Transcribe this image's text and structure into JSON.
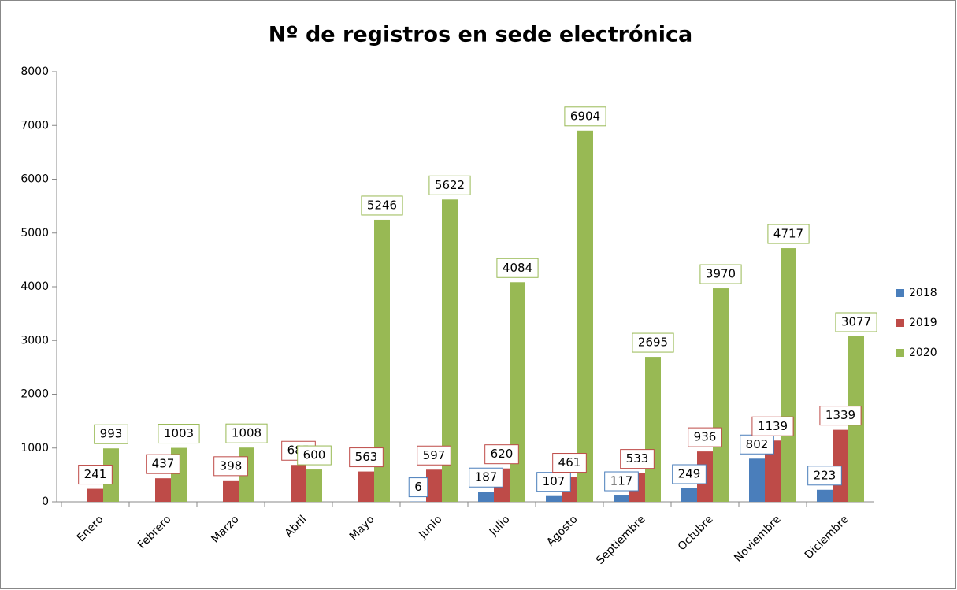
{
  "chart_data": {
    "type": "bar",
    "title": "Nº de registros en sede electrónica",
    "categories": [
      "Enero",
      "Febrero",
      "Marzo",
      "Abril",
      "Mayo",
      "Junio",
      "Julio",
      "Agosto",
      "Septiembre",
      "Octubre",
      "Noviembre",
      "Diciembre"
    ],
    "series": [
      {
        "name": "2018",
        "color": "#4a7ebb",
        "values": [
          null,
          null,
          null,
          null,
          null,
          6,
          187,
          107,
          117,
          249,
          802,
          223
        ]
      },
      {
        "name": "2019",
        "color": "#be4b48",
        "values": [
          241,
          437,
          398,
          685,
          563,
          597,
          620,
          461,
          533,
          936,
          1139,
          1339
        ]
      },
      {
        "name": "2020",
        "color": "#98b954",
        "values": [
          993,
          1003,
          1008,
          600,
          5246,
          5622,
          4084,
          6904,
          2695,
          3970,
          4717,
          3077
        ]
      }
    ],
    "ylim": [
      0,
      8000
    ],
    "yticks": [
      0,
      1000,
      2000,
      3000,
      4000,
      5000,
      6000,
      7000,
      8000
    ],
    "grid": false,
    "legend": "right",
    "data_labels": true
  }
}
